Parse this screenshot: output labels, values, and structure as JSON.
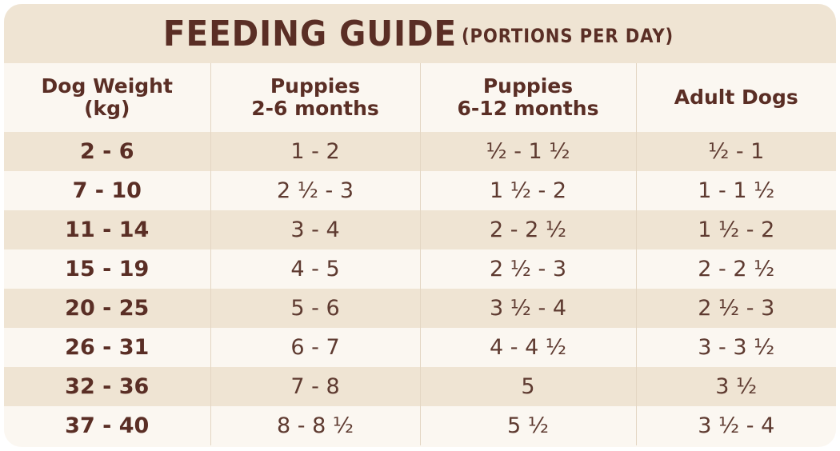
{
  "title": {
    "main": "FEEDING GUIDE",
    "sub": "(PORTIONS PER DAY)"
  },
  "columns": [
    "Dog Weight\n(kg)",
    "Puppies\n2-6 months",
    "Puppies\n6-12 months",
    "Adult Dogs"
  ],
  "rows": [
    [
      "2 - 6",
      "1 - 2",
      "½ - 1 ½",
      "½ - 1"
    ],
    [
      "7 - 10",
      "2 ½ - 3",
      "1 ½ - 2",
      "1 - 1 ½"
    ],
    [
      "11 - 14",
      "3 - 4",
      "2 - 2 ½",
      "1 ½ - 2"
    ],
    [
      "15 - 19",
      "4 - 5",
      "2 ½ - 3",
      "2 - 2 ½"
    ],
    [
      "20 - 25",
      "5 - 6",
      "3 ½ - 4",
      "2 ½ - 3"
    ],
    [
      "26 - 31",
      "6 - 7",
      "4 - 4 ½",
      "3 - 3 ½"
    ],
    [
      "32 - 36",
      "7 - 8",
      "5",
      "3 ½"
    ],
    [
      "37 - 40",
      "8 - 8 ½",
      "5 ½",
      "3 ½ - 4"
    ]
  ],
  "colors": {
    "text": "#5a2e25",
    "band": "#efe4d3",
    "background": "#fbf7f1"
  }
}
